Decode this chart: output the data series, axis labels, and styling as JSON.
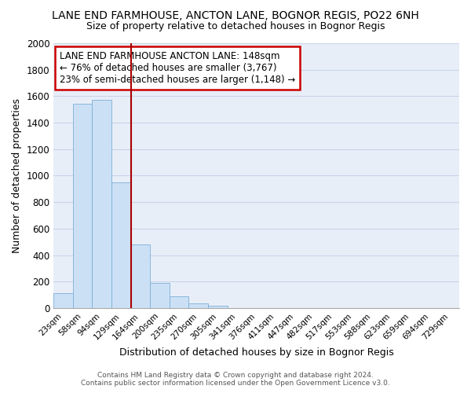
{
  "title": "LANE END FARMHOUSE, ANCTON LANE, BOGNOR REGIS, PO22 6NH",
  "subtitle": "Size of property relative to detached houses in Bognor Regis",
  "xlabel": "Distribution of detached houses by size in Bognor Regis",
  "ylabel": "Number of detached properties",
  "categories": [
    "23sqm",
    "58sqm",
    "94sqm",
    "129sqm",
    "164sqm",
    "200sqm",
    "235sqm",
    "270sqm",
    "305sqm",
    "341sqm",
    "376sqm",
    "411sqm",
    "447sqm",
    "482sqm",
    "517sqm",
    "553sqm",
    "588sqm",
    "623sqm",
    "659sqm",
    "694sqm",
    "729sqm"
  ],
  "values": [
    110,
    1540,
    1570,
    950,
    480,
    190,
    90,
    35,
    20,
    0,
    0,
    0,
    0,
    0,
    0,
    0,
    0,
    0,
    0,
    0,
    0
  ],
  "bar_color": "#cce0f5",
  "bar_edge_color": "#7ab0d8",
  "vline_color": "#aa0000",
  "vline_pos": 3.5,
  "annotation_text": "LANE END FARMHOUSE ANCTON LANE: 148sqm\n← 76% of detached houses are smaller (3,767)\n23% of semi-detached houses are larger (1,148) →",
  "annotation_box_color": "#cc0000",
  "ylim": [
    0,
    2000
  ],
  "yticks": [
    0,
    200,
    400,
    600,
    800,
    1000,
    1200,
    1400,
    1600,
    1800,
    2000
  ],
  "grid_color": "#c8d4e8",
  "background_color": "#e8eef8",
  "title_fontsize": 10,
  "subtitle_fontsize": 9,
  "footer_line1": "Contains HM Land Registry data © Crown copyright and database right 2024.",
  "footer_line2": "Contains public sector information licensed under the Open Government Licence v3.0."
}
